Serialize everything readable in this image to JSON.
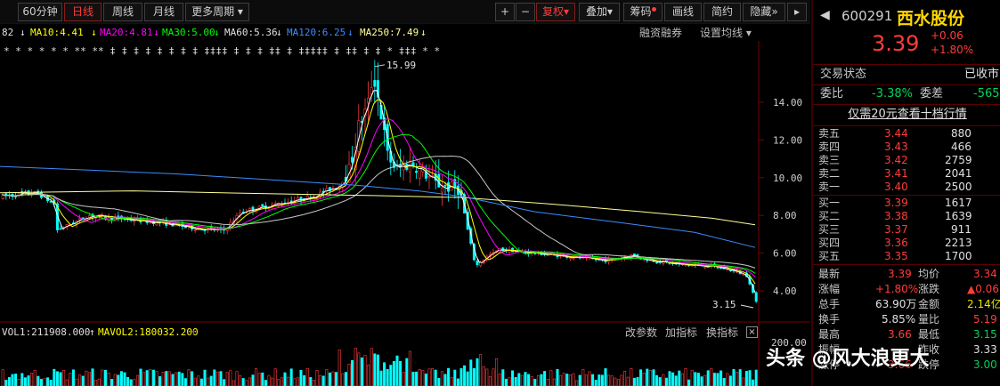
{
  "toolbar": {
    "tabs": [
      "60分钟",
      "日线",
      "周线",
      "月线",
      "更多周期"
    ],
    "active_tab": "日线",
    "plus": "+",
    "minus": "−",
    "fuquan": "复权",
    "overlay": "叠加",
    "chips": "筹码",
    "draw": "画线",
    "simple": "简约",
    "hide": "隐藏"
  },
  "ma": {
    "lead": "82",
    "ma10": "MA10:4.41",
    "ma20": "MA20:4.81",
    "ma30": "MA30:5.00",
    "ma60": "MA60:5.36",
    "ma120": "MA120:6.25",
    "ma250": "MA250:7.49",
    "margin_btn": "融资融券",
    "setting_btn": "设置均线"
  },
  "axis": {
    "ticks": [
      "14.00",
      "12.00",
      "10.00",
      "8.00",
      "6.00",
      "4.00"
    ],
    "high_label": "15.99",
    "low_label": "3.15",
    "vol_top": "200.00"
  },
  "volume": {
    "vol1": "VOL1:211908.000",
    "mavol2": "MAVOL2:180032.200",
    "btn_params": "改参数",
    "btn_add": "加指标",
    "btn_switch": "换指标",
    "close": "×"
  },
  "colors": {
    "up": "#ff3c3c",
    "down": "#00ffff",
    "ma5": "#ffffff",
    "ma10": "#ffff00",
    "ma20": "#ff00ff",
    "ma30": "#00ff00",
    "ma60": "#c8c8c8",
    "ma120": "#3c8cff",
    "ma250": "#ffff96"
  },
  "quote": {
    "code": "600291",
    "name": "西水股份",
    "price": "3.39",
    "change": "+0.06",
    "change_pct": "+1.80%",
    "status_label": "交易状态",
    "status_value": "已收市",
    "ratio_label": "委比",
    "ratio_value": "-3.38%",
    "diff_label": "委差",
    "diff_value": "-565",
    "level10_link": "仅需20元查看十档行情"
  },
  "asks": [
    {
      "label": "卖五",
      "price": "3.44",
      "vol": "880"
    },
    {
      "label": "卖四",
      "price": "3.43",
      "vol": "466"
    },
    {
      "label": "卖三",
      "price": "3.42",
      "vol": "2759"
    },
    {
      "label": "卖二",
      "price": "3.41",
      "vol": "2041"
    },
    {
      "label": "卖一",
      "price": "3.40",
      "vol": "2500"
    }
  ],
  "bids": [
    {
      "label": "买一",
      "price": "3.39",
      "vol": "1617"
    },
    {
      "label": "买二",
      "price": "3.38",
      "vol": "1639"
    },
    {
      "label": "买三",
      "price": "3.37",
      "vol": "911"
    },
    {
      "label": "买四",
      "price": "3.36",
      "vol": "2213"
    },
    {
      "label": "买五",
      "price": "3.35",
      "vol": "1700"
    }
  ],
  "stats": [
    {
      "l1": "最新",
      "v1": "3.39",
      "c1": "red",
      "l2": "均价",
      "v2": "3.34",
      "c2": "red"
    },
    {
      "l1": "涨幅",
      "v1": "+1.80%",
      "c1": "red",
      "l2": "涨跌",
      "v2": "▲0.06",
      "c2": "red"
    },
    {
      "l1": "总手",
      "v1": "63.90万",
      "c1": "white",
      "l2": "金额",
      "v2": "2.14亿",
      "c2": "yellow"
    },
    {
      "l1": "换手",
      "v1": "5.85%",
      "c1": "white",
      "l2": "量比",
      "v2": "5.19",
      "c2": "red"
    },
    {
      "l1": "最高",
      "v1": "3.66",
      "c1": "red",
      "l2": "最低",
      "v2": "3.15",
      "c2": "green"
    },
    {
      "l1": "振幅",
      "v1": "",
      "c1": "red",
      "l2": "昨收",
      "v2": "3.33",
      "c2": "white"
    },
    {
      "l1": "涨停",
      "v1": "3.66",
      "c1": "red",
      "l2": "跌停",
      "v2": "3.00",
      "c2": "green"
    }
  ],
  "watermark": "头条 @风大浪更大"
}
